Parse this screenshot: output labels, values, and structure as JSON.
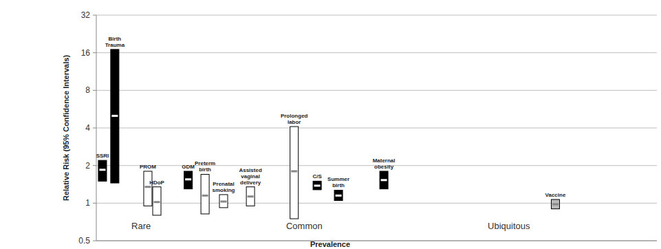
{
  "chart_data": {
    "type": "range",
    "y_label": "Relative Risk (95% Confidence Intervals)",
    "x_label": "Prevalence",
    "categories": [
      "SSRI",
      "Birth Trauma",
      "PROM",
      "HDoP",
      "GDM",
      "Preterm birth",
      "Prenatal smoking",
      "Assisted vaginal delivery",
      "Prolonged labor",
      "C/S",
      "Summer birth",
      "Maternal obesity",
      "Vaccine"
    ],
    "x": [
      1.1,
      3.3,
      9.2,
      10.8,
      16.4,
      19.4,
      22.7,
      27.5,
      35.3,
      39.4,
      43.2,
      51.3,
      81.9
    ],
    "values": [
      1.85,
      5.0,
      1.35,
      1.02,
      1.55,
      1.15,
      1.03,
      1.13,
      1.8,
      1.38,
      1.15,
      1.53,
      0.98
    ],
    "ci_low": [
      1.5,
      1.45,
      0.95,
      0.8,
      1.3,
      0.82,
      0.92,
      0.95,
      0.75,
      1.28,
      1.05,
      1.3,
      0.9
    ],
    "ci_high": [
      2.2,
      17,
      1.8,
      1.35,
      1.8,
      1.7,
      1.17,
      1.35,
      4.1,
      1.5,
      1.27,
      1.8,
      1.07
    ],
    "colors": [
      "#000000",
      "#000000",
      "#ffffff",
      "#ffffff",
      "#000000",
      "#ffffff",
      "#ffffff",
      "#ffffff",
      "#ffffff",
      "#000000",
      "#000000",
      "#000000",
      "#bbbbbb"
    ],
    "annotations": [
      {
        "text": "Rare",
        "x": 8
      },
      {
        "text": "Common",
        "x": 37.1
      },
      {
        "text": "Ubiquitous",
        "x": 73.6
      }
    ],
    "xlim": [
      0,
      100
    ],
    "ylim": [
      0.5,
      32
    ],
    "yticks": [
      0.5,
      1,
      2,
      4,
      8,
      16,
      32
    ],
    "log": "y",
    "grid": true,
    "tick_labels": "y"
  }
}
